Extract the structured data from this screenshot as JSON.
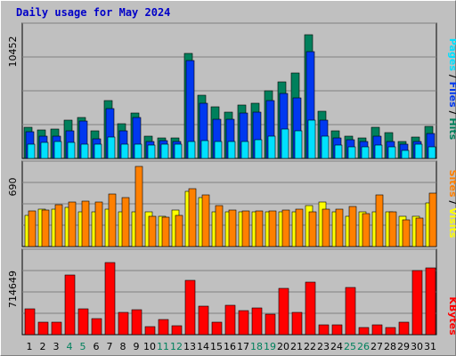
{
  "title": "Daily usage for May 2024",
  "colors": {
    "hits": "#00805c",
    "files": "#0038f0",
    "pages": "#00e0ff",
    "visits": "#ffff00",
    "sites": "#ff8000",
    "kbytes": "#ff0000",
    "weekend_day": "#00805c",
    "weekday_day": "#000000"
  },
  "right_labels": {
    "pages": "Pages",
    "files": "Files",
    "hits": "Hits",
    "sites": "Sites",
    "visits": "Visits",
    "kbytes": "KBytes",
    "sep": "/"
  },
  "chart_data": [
    {
      "type": "bar",
      "name": "hits-files-pages",
      "ymax_label": "10452",
      "ylim": [
        0,
        10452
      ],
      "categories": [
        "1",
        "2",
        "3",
        "4",
        "5",
        "6",
        "7",
        "8",
        "9",
        "10",
        "11",
        "12",
        "13",
        "14",
        "15",
        "16",
        "17",
        "18",
        "19",
        "20",
        "21",
        "22",
        "23",
        "24",
        "25",
        "26",
        "27",
        "28",
        "29",
        "30",
        "31"
      ],
      "series": [
        {
          "name": "Hits",
          "values": [
            2519,
            2320,
            2386,
            3049,
            3314,
            2188,
            4641,
            2784,
            3646,
            1790,
            1657,
            1657,
            8420,
            5104,
            4177,
            3712,
            4309,
            4442,
            5435,
            6165,
            6894,
            9945,
            3779,
            2187,
            1790,
            1657,
            2519,
            2055,
            1392,
            1724,
            2585
          ]
        },
        {
          "name": "Files",
          "values": [
            2121,
            1790,
            1790,
            2253,
            2983,
            1591,
            3978,
            2253,
            3314,
            1392,
            1459,
            1392,
            7888,
            4443,
            3181,
            3115,
            3646,
            3712,
            4641,
            5236,
            4840,
            8618,
            3049,
            1657,
            1525,
            1392,
            1790,
            1392,
            1127,
            1392,
            1989
          ]
        },
        {
          "name": "Pages",
          "values": [
            1127,
            1260,
            1326,
            1260,
            1127,
            1127,
            1724,
            1127,
            1127,
            1061,
            1127,
            1127,
            1392,
            1459,
            1326,
            1392,
            1392,
            1525,
            1790,
            2387,
            2253,
            3049,
            1790,
            1061,
            928,
            928,
            1061,
            928,
            663,
            1127,
            928
          ]
        }
      ]
    },
    {
      "type": "bar",
      "name": "visits-sites",
      "ymax_label": "690",
      "ylim": [
        0,
        690
      ],
      "categories": [
        "1",
        "2",
        "3",
        "4",
        "5",
        "6",
        "7",
        "8",
        "9",
        "10",
        "11",
        "12",
        "13",
        "14",
        "15",
        "16",
        "17",
        "18",
        "19",
        "20",
        "21",
        "22",
        "23",
        "24",
        "25",
        "26",
        "27",
        "28",
        "29",
        "30",
        "31"
      ],
      "series": [
        {
          "name": "Visits",
          "values": [
            268,
            325,
            325,
            334,
            298,
            299,
            325,
            298,
            298,
            298,
            260,
            311,
            476,
            421,
            298,
            298,
            298,
            298,
            298,
            298,
            298,
            349,
            384,
            298,
            260,
            298,
            298,
            298,
            260,
            260,
            375
          ]
        },
        {
          "name": "Sites",
          "values": [
            309,
            317,
            358,
            384,
            390,
            380,
            454,
            424,
            690,
            260,
            253,
            268,
            497,
            446,
            351,
            317,
            305,
            309,
            310,
            315,
            325,
            299,
            325,
            325,
            343,
            282,
            443,
            298,
            229,
            246,
            463
          ]
        }
      ]
    },
    {
      "type": "bar",
      "name": "kbytes",
      "ymax_label": "714649",
      "ylim": [
        0,
        714649
      ],
      "categories": [
        "1",
        "2",
        "3",
        "4",
        "5",
        "6",
        "7",
        "8",
        "9",
        "10",
        "11",
        "12",
        "13",
        "14",
        "15",
        "16",
        "17",
        "18",
        "19",
        "20",
        "21",
        "22",
        "23",
        "24",
        "25",
        "26",
        "27",
        "28",
        "29",
        "30",
        "31"
      ],
      "series": [
        {
          "name": "KBytes",
          "values": [
            228000,
            110000,
            111000,
            530000,
            228000,
            145000,
            640000,
            198000,
            220000,
            70000,
            133000,
            76000,
            483000,
            253000,
            111000,
            260000,
            214000,
            238000,
            185000,
            410000,
            200000,
            470000,
            91000,
            91000,
            420000,
            61000,
            91000,
            61000,
            113000,
            575000,
            599000
          ]
        }
      ]
    }
  ]
}
